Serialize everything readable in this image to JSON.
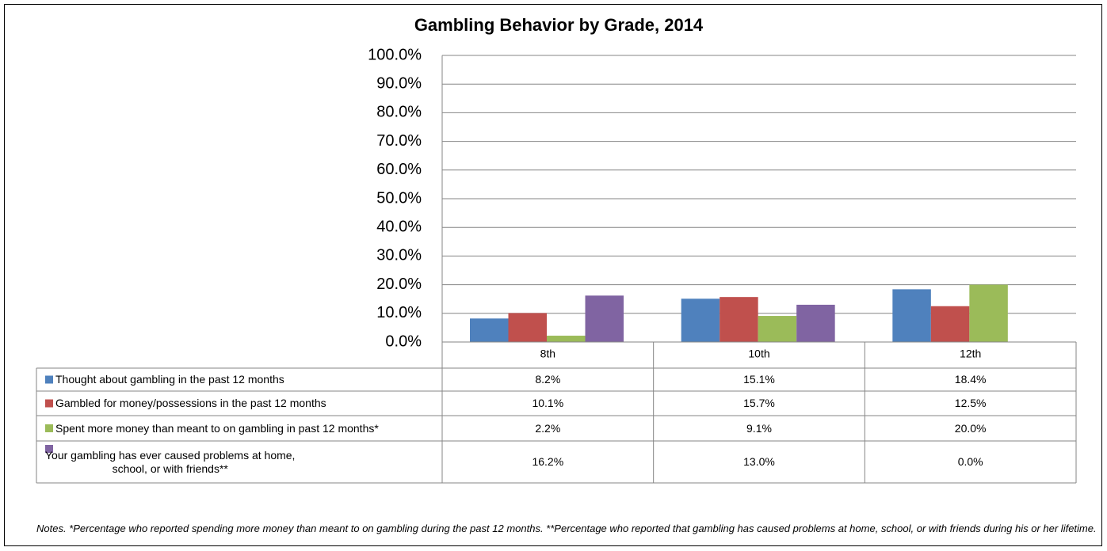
{
  "chart_data": {
    "type": "bar",
    "title": "Gambling Behavior by Grade, 2014",
    "categories": [
      "8th",
      "10th",
      "12th"
    ],
    "series": [
      {
        "name": "Thought about gambling in the past 12 months",
        "color": "#4f81bd",
        "values": [
          8.2,
          15.1,
          18.4
        ],
        "value_labels": [
          "8.2%",
          "15.1%",
          "18.4%"
        ]
      },
      {
        "name": "Gambled for money/possessions in the past 12 months",
        "color": "#c0504d",
        "values": [
          10.1,
          15.7,
          12.5
        ],
        "value_labels": [
          "10.1%",
          "15.7%",
          "12.5%"
        ]
      },
      {
        "name": "Spent more money than meant to on gambling in past 12 months*",
        "color": "#9bbb59",
        "values": [
          2.2,
          9.1,
          20.0
        ],
        "value_labels": [
          "2.2%",
          "9.1%",
          "20.0%"
        ]
      },
      {
        "name": "Your gambling has ever caused problems at home,\nschool, or with friends**",
        "color": "#8064a2",
        "values": [
          16.2,
          13.0,
          0.0
        ],
        "value_labels": [
          "16.2%",
          "13.0%",
          "0.0%"
        ]
      }
    ],
    "ylim": [
      0,
      100
    ],
    "yticks": [
      {
        "value": 0,
        "label": "0.0%"
      },
      {
        "value": 10,
        "label": "10.0%"
      },
      {
        "value": 20,
        "label": "20.0%"
      },
      {
        "value": 30,
        "label": "30.0%"
      },
      {
        "value": 40,
        "label": "40.0%"
      },
      {
        "value": 50,
        "label": "50.0%"
      },
      {
        "value": 60,
        "label": "60.0%"
      },
      {
        "value": 70,
        "label": "70.0%"
      },
      {
        "value": 80,
        "label": "80.0%"
      },
      {
        "value": 90,
        "label": "90.0%"
      },
      {
        "value": 100,
        "label": "100.0%"
      }
    ],
    "grid": true,
    "notes": "Notes. *Percentage who reported spending more money than meant to on gambling during the past 12 months. **Percentage who reported that gambling has caused problems at home, school, or with friends during his or her lifetime."
  }
}
